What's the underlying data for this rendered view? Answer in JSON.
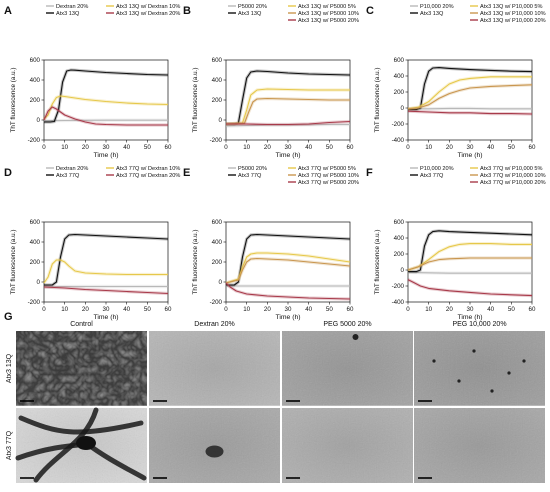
{
  "figure": {
    "panel_letters": [
      "A",
      "B",
      "C",
      "D",
      "E",
      "F"
    ],
    "tem_letter": "G",
    "y_axis_label": "ThT fluorescence (a.u.)",
    "x_axis_label": "Time (h)",
    "colors": {
      "grey": "#b8b8b8",
      "black": "#111111",
      "yellow": "#e6c84a",
      "orange": "#c9964f",
      "red": "#a83a4a"
    }
  },
  "chart_data": [
    {
      "panel": "A",
      "type": "line",
      "xlabel": "Time (h)",
      "ylabel": "ThT fluorescence (a.u.)",
      "xlim": [
        0,
        60
      ],
      "ylim": [
        -200,
        600
      ],
      "xticks": [
        0,
        10,
        20,
        30,
        40,
        50,
        60
      ],
      "yticks": [
        -200,
        0,
        200,
        400,
        600
      ],
      "legend": [
        "Dextran 20%",
        "Atx3 13Q",
        "Atx3 13Q w/ Dextran 10%",
        "Atx3 13Q w/ Dextran 20%"
      ],
      "series": [
        {
          "name": "Dextran 20%",
          "color": "grey",
          "x": [
            0,
            10,
            20,
            30,
            40,
            50,
            60
          ],
          "y": [
            -8,
            -5,
            -3,
            -2,
            -2,
            -2,
            -2
          ]
        },
        {
          "name": "Atx3 13Q",
          "color": "black",
          "x": [
            0,
            3,
            5,
            7,
            9,
            11,
            13,
            15,
            20,
            30,
            40,
            50,
            60
          ],
          "y": [
            -20,
            -20,
            -15,
            100,
            380,
            490,
            500,
            498,
            490,
            475,
            465,
            455,
            450
          ]
        },
        {
          "name": "Atx3 13Q w/ Dextran 10%",
          "color": "yellow",
          "x": [
            0,
            2,
            4,
            6,
            8,
            10,
            15,
            20,
            30,
            40,
            50,
            60
          ],
          "y": [
            10,
            50,
            160,
            225,
            240,
            235,
            220,
            205,
            185,
            170,
            160,
            155
          ]
        },
        {
          "name": "Atx3 13Q w/ Dextran 20%",
          "color": "red",
          "x": [
            0,
            2,
            4,
            6,
            8,
            10,
            15,
            20,
            25,
            30,
            40,
            50,
            60
          ],
          "y": [
            0,
            90,
            130,
            110,
            80,
            50,
            10,
            -20,
            -40,
            -45,
            -50,
            -50,
            -50
          ]
        }
      ]
    },
    {
      "panel": "B",
      "type": "line",
      "xlabel": "Time (h)",
      "ylabel": "ThT fluorescence (a.u.)",
      "xlim": [
        0,
        60
      ],
      "ylim": [
        -200,
        600
      ],
      "xticks": [
        0,
        10,
        20,
        30,
        40,
        50,
        60
      ],
      "yticks": [
        -200,
        0,
        200,
        400,
        600
      ],
      "legend": [
        "P5000 20%",
        "Atx3 13Q",
        "Atx3 13Q w/ P5000 5%",
        "Atx3 13Q w/ P5000 10%",
        "Atx3 13Q w/ P5000 20%"
      ],
      "series": [
        {
          "name": "P5000 20%",
          "color": "grey",
          "x": [
            0,
            10,
            20,
            30,
            40,
            50,
            60
          ],
          "y": [
            -60,
            -55,
            -50,
            -50,
            -48,
            -45,
            -45
          ]
        },
        {
          "name": "Atx3 13Q",
          "color": "black",
          "x": [
            0,
            4,
            6,
            8,
            10,
            12,
            15,
            20,
            30,
            40,
            50,
            60
          ],
          "y": [
            -40,
            -40,
            -30,
            200,
            420,
            480,
            490,
            485,
            470,
            460,
            455,
            450
          ]
        },
        {
          "name": "Atx3 13Q w/ P5000 5%",
          "color": "yellow",
          "x": [
            0,
            8,
            10,
            12,
            15,
            20,
            30,
            40,
            50,
            60
          ],
          "y": [
            -40,
            -30,
            100,
            250,
            300,
            310,
            305,
            300,
            300,
            300
          ]
        },
        {
          "name": "Atx3 13Q w/ P5000 10%",
          "color": "orange",
          "x": [
            0,
            9,
            11,
            13,
            15,
            20,
            30,
            40,
            50,
            60
          ],
          "y": [
            -40,
            -30,
            80,
            180,
            210,
            215,
            210,
            205,
            200,
            200
          ]
        },
        {
          "name": "Atx3 13Q w/ P5000 20%",
          "color": "red",
          "x": [
            0,
            10,
            20,
            30,
            40,
            50,
            60
          ],
          "y": [
            -40,
            -40,
            -45,
            -45,
            -40,
            -25,
            -15
          ]
        }
      ]
    },
    {
      "panel": "C",
      "type": "line",
      "xlabel": "Time (h)",
      "ylabel": "ThT fluorescence (a.u.)",
      "xlim": [
        0,
        60
      ],
      "ylim": [
        -400,
        600
      ],
      "xticks": [
        0,
        10,
        20,
        30,
        40,
        50,
        60
      ],
      "yticks": [
        -400,
        -200,
        0,
        200,
        400,
        600
      ],
      "legend": [
        "P10,000 20%",
        "Atx3 13Q",
        "Atx3 13Q w/ P10,000 5%",
        "Atx3 13Q w/ P10,000 10%",
        "Atx3 13Q w/ P10,000 20%"
      ],
      "series": [
        {
          "name": "P10,000 20%",
          "color": "grey",
          "x": [
            0,
            10,
            20,
            30,
            40,
            50,
            60
          ],
          "y": [
            -10,
            -10,
            -5,
            -5,
            -10,
            -10,
            -10
          ]
        },
        {
          "name": "Atx3 13Q",
          "color": "black",
          "x": [
            0,
            4,
            6,
            8,
            10,
            12,
            15,
            20,
            30,
            40,
            50,
            60
          ],
          "y": [
            -20,
            -20,
            0,
            300,
            460,
            500,
            505,
            495,
            480,
            470,
            460,
            455
          ]
        },
        {
          "name": "Atx3 13Q w/ P10,000 5%",
          "color": "yellow",
          "x": [
            0,
            5,
            10,
            15,
            20,
            25,
            30,
            40,
            50,
            60
          ],
          "y": [
            -10,
            10,
            80,
            200,
            300,
            350,
            370,
            390,
            390,
            390
          ]
        },
        {
          "name": "Atx3 13Q w/ P10,000 10%",
          "color": "orange",
          "x": [
            0,
            5,
            10,
            15,
            20,
            25,
            30,
            40,
            50,
            60
          ],
          "y": [
            -10,
            0,
            40,
            120,
            180,
            220,
            250,
            270,
            280,
            290
          ]
        },
        {
          "name": "Atx3 13Q w/ P10,000 20%",
          "color": "red",
          "x": [
            0,
            10,
            20,
            30,
            40,
            50,
            60
          ],
          "y": [
            -40,
            -50,
            -60,
            -60,
            -70,
            -70,
            -75
          ]
        }
      ]
    },
    {
      "panel": "D",
      "type": "line",
      "xlabel": "Time (h)",
      "ylabel": "ThT fluorescence (a.u.)",
      "xlim": [
        0,
        60
      ],
      "ylim": [
        -200,
        600
      ],
      "xticks": [
        0,
        10,
        20,
        30,
        40,
        50,
        60
      ],
      "yticks": [
        -200,
        0,
        200,
        400,
        600
      ],
      "legend": [
        "Dextran 20%",
        "Atx3 77Q",
        "Atx3 77Q w/ Dextran 10%",
        "Atx3 77Q w/ Dextran 20%"
      ],
      "series": [
        {
          "name": "Dextran 20%",
          "color": "grey",
          "x": [
            0,
            10,
            20,
            30,
            40,
            50,
            60
          ],
          "y": [
            -50,
            -45,
            -45,
            -45,
            -45,
            -45,
            -45
          ]
        },
        {
          "name": "Atx3 77Q",
          "color": "black",
          "x": [
            0,
            4,
            6,
            8,
            10,
            12,
            15,
            20,
            30,
            40,
            50,
            60
          ],
          "y": [
            -30,
            -30,
            0,
            250,
            430,
            470,
            475,
            470,
            460,
            450,
            440,
            430
          ]
        },
        {
          "name": "Atx3 77Q w/ Dextran 10%",
          "color": "yellow",
          "x": [
            0,
            2,
            4,
            6,
            8,
            10,
            12,
            15,
            20,
            30,
            40,
            50,
            60
          ],
          "y": [
            -10,
            50,
            180,
            220,
            220,
            200,
            160,
            110,
            90,
            80,
            75,
            75,
            75
          ]
        },
        {
          "name": "Atx3 77Q w/ Dextran 20%",
          "color": "red",
          "x": [
            0,
            10,
            20,
            30,
            40,
            50,
            60
          ],
          "y": [
            -50,
            -60,
            -75,
            -85,
            -95,
            -105,
            -115
          ]
        }
      ]
    },
    {
      "panel": "E",
      "type": "line",
      "xlabel": "Time (h)",
      "ylabel": "ThT fluorescence (a.u.)",
      "xlim": [
        0,
        60
      ],
      "ylim": [
        -200,
        600
      ],
      "xticks": [
        0,
        10,
        20,
        30,
        40,
        50,
        60
      ],
      "yticks": [
        -200,
        0,
        200,
        400,
        600
      ],
      "legend": [
        "P5000 20%",
        "Atx3 77Q",
        "Atx3 77Q w/ P5000 5%",
        "Atx3 77Q w/ P5000 10%",
        "Atx3 77Q w/ P5000 20%"
      ],
      "series": [
        {
          "name": "P5000 20%",
          "color": "grey",
          "x": [
            0,
            10,
            20,
            30,
            40,
            50,
            60
          ],
          "y": [
            -40,
            -40,
            -40,
            -40,
            -40,
            -40,
            -40
          ]
        },
        {
          "name": "Atx3 77Q",
          "color": "black",
          "x": [
            0,
            4,
            6,
            8,
            10,
            12,
            15,
            20,
            30,
            40,
            50,
            60
          ],
          "y": [
            -30,
            -30,
            0,
            250,
            430,
            470,
            475,
            470,
            460,
            450,
            440,
            430
          ]
        },
        {
          "name": "Atx3 77Q w/ P5000 5%",
          "color": "yellow",
          "x": [
            0,
            6,
            8,
            10,
            12,
            15,
            20,
            30,
            40,
            50,
            60
          ],
          "y": [
            -10,
            30,
            150,
            250,
            280,
            290,
            290,
            280,
            260,
            230,
            200
          ]
        },
        {
          "name": "Atx3 77Q w/ P5000 10%",
          "color": "orange",
          "x": [
            0,
            6,
            8,
            10,
            12,
            15,
            20,
            30,
            40,
            50,
            60
          ],
          "y": [
            -10,
            20,
            120,
            200,
            230,
            235,
            230,
            220,
            200,
            180,
            160
          ]
        },
        {
          "name": "Atx3 77Q w/ P5000 20%",
          "color": "red",
          "x": [
            0,
            2,
            5,
            10,
            20,
            30,
            40,
            50,
            60
          ],
          "y": [
            -10,
            -50,
            -90,
            -120,
            -140,
            -150,
            -160,
            -165,
            -170
          ]
        }
      ]
    },
    {
      "panel": "F",
      "type": "line",
      "xlabel": "Time (h)",
      "ylabel": "ThT fluorescence (a.u.)",
      "xlim": [
        0,
        60
      ],
      "ylim": [
        -400,
        600
      ],
      "xticks": [
        0,
        10,
        20,
        30,
        40,
        50,
        60
      ],
      "yticks": [
        -400,
        -200,
        0,
        200,
        400,
        600
      ],
      "legend": [
        "P10,000 20%",
        "Atx3 77Q",
        "Atx3 77Q w/ P10,000 5%",
        "Atx3 77Q w/ P10,000 10%",
        "Atx3 77Q w/ P10,000 20%"
      ],
      "series": [
        {
          "name": "P10,000 20%",
          "color": "grey",
          "x": [
            0,
            10,
            20,
            30,
            40,
            50,
            60
          ],
          "y": [
            -30,
            -35,
            -40,
            -40,
            -40,
            -40,
            -40
          ]
        },
        {
          "name": "Atx3 77Q",
          "color": "black",
          "x": [
            0,
            4,
            6,
            8,
            10,
            12,
            15,
            20,
            30,
            40,
            50,
            60
          ],
          "y": [
            -20,
            -20,
            0,
            300,
            440,
            480,
            490,
            480,
            470,
            460,
            450,
            440
          ]
        },
        {
          "name": "Atx3 77Q w/ P10,000 5%",
          "color": "yellow",
          "x": [
            0,
            5,
            10,
            15,
            20,
            25,
            30,
            40,
            50,
            60
          ],
          "y": [
            0,
            40,
            130,
            230,
            290,
            320,
            330,
            330,
            320,
            320
          ]
        },
        {
          "name": "Atx3 77Q w/ P10,000 10%",
          "color": "orange",
          "x": [
            0,
            5,
            10,
            15,
            20,
            25,
            30,
            40,
            50,
            60
          ],
          "y": [
            0,
            40,
            100,
            130,
            140,
            145,
            150,
            150,
            150,
            150
          ]
        },
        {
          "name": "Atx3 77Q w/ P10,000 20%",
          "color": "red",
          "x": [
            0,
            3,
            6,
            10,
            20,
            30,
            40,
            50,
            60
          ],
          "y": [
            -120,
            -160,
            -200,
            -230,
            -260,
            -280,
            -300,
            -310,
            -320
          ]
        }
      ]
    }
  ],
  "tem": {
    "columns": [
      "Control",
      "Dextran 20%",
      "PEG 5000 20%",
      "PEG 10,000 20%"
    ],
    "rows": [
      "Atx3 13Q",
      "Atx3 77Q"
    ]
  }
}
